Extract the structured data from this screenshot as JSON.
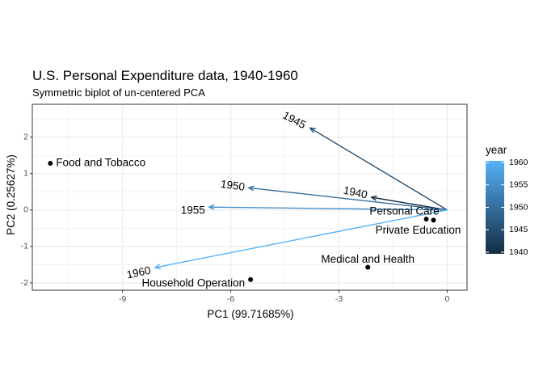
{
  "chart_data": {
    "type": "scatter",
    "title": "U.S. Personal Expenditure data, 1940-1960",
    "subtitle": "Symmetric biplot of un-centered PCA",
    "xlabel": "PC1 (99.71685%)",
    "ylabel": "PC2 (0.25627%)",
    "xlim": [
      -11.5,
      0.55
    ],
    "ylim": [
      -2.2,
      2.9
    ],
    "x_ticks": [
      -9,
      -6,
      -3,
      0
    ],
    "y_ticks": [
      -2,
      -1,
      0,
      1,
      2
    ],
    "grid": true,
    "points": [
      {
        "label": "Food and Tobacco",
        "x": -11.0,
        "y": 1.28
      },
      {
        "label": "Household Operation",
        "x": -5.45,
        "y": -1.91
      },
      {
        "label": "Medical and Health",
        "x": -2.2,
        "y": -1.57
      },
      {
        "label": "Personal Care",
        "x": -0.58,
        "y": -0.25
      },
      {
        "label": "Private Education",
        "x": -0.38,
        "y": -0.28
      }
    ],
    "arrows": [
      {
        "label": "1940",
        "year": 1940,
        "x": -2.1,
        "y": 0.35
      },
      {
        "label": "1945",
        "year": 1945,
        "x": -3.8,
        "y": 2.25
      },
      {
        "label": "1950",
        "year": 1950,
        "x": -5.5,
        "y": 0.61
      },
      {
        "label": "1955",
        "year": 1955,
        "x": -6.6,
        "y": 0.08
      },
      {
        "label": "1960",
        "year": 1960,
        "x": -8.1,
        "y": -1.58
      }
    ],
    "legend": {
      "title": "year",
      "position": "right",
      "ticks": [
        1960,
        1955,
        1950,
        1945,
        1940
      ],
      "range": [
        1940,
        1960
      ],
      "color_low": "#132b43",
      "color_high": "#56b1f7"
    },
    "panel_background": "#ffffff",
    "panel_border": "#333333",
    "grid_color": "#ebebeb"
  }
}
